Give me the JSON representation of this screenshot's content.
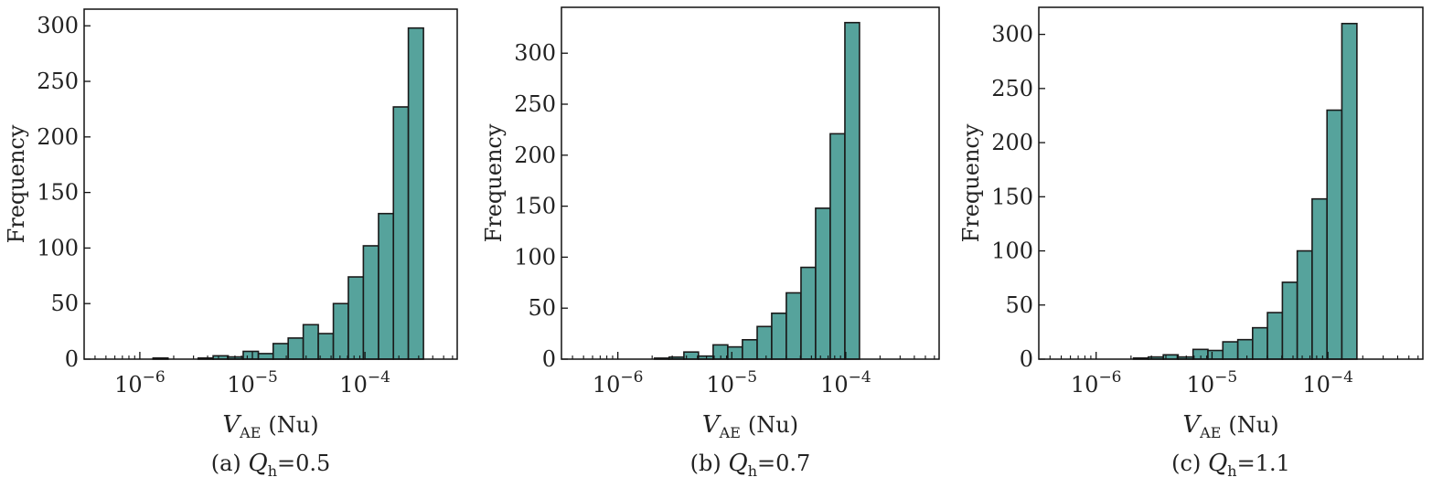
{
  "bar_color": "#56a39c",
  "edge_color": "#1a1a1a",
  "chart_data": [
    {
      "type": "bar",
      "xscale": "log",
      "xlim": [
        3.2e-07,
        0.00066
      ],
      "ylim": [
        0,
        315
      ],
      "yticks": [
        0,
        50,
        100,
        150,
        200,
        250,
        300
      ],
      "xticks": [
        {
          "value": 1e-06,
          "base": "10",
          "exp": "−6"
        },
        {
          "value": 1e-05,
          "base": "10",
          "exp": "−5"
        },
        {
          "value": 0.0001,
          "base": "10",
          "exp": "−4"
        }
      ],
      "ylabel": "Frequency",
      "xlabel": {
        "main": "V",
        "sub": "AE",
        "unit": "(Nu)"
      },
      "caption": {
        "prefix": "(a)",
        "var": "Q",
        "sub": "h",
        "eq": "=",
        "value": "0.5"
      },
      "bin_edges": [
        7.1e-07,
        9.66e-07,
        1.31e-06,
        1.78e-06,
        2.42e-06,
        3.3e-06,
        4.48e-06,
        6.1e-06,
        8.29e-06,
        1.13e-05,
        1.53e-05,
        2.08e-05,
        2.83e-05,
        3.85e-05,
        5.24e-05,
        7.12e-05,
        9.68e-05,
        0.000132,
        0.000179,
        0.000243,
        0.000331,
        0.00045,
        0.000612
      ],
      "values": [
        0,
        0,
        1,
        0,
        0,
        1,
        3,
        2,
        7,
        5,
        14,
        19,
        31,
        23,
        50,
        74,
        102,
        131,
        227,
        298,
        0,
        0
      ]
    },
    {
      "type": "bar",
      "xscale": "log",
      "xlim": [
        3.2e-07,
        0.00066
      ],
      "ylim": [
        0,
        345
      ],
      "yticks": [
        0,
        50,
        100,
        150,
        200,
        250,
        300
      ],
      "xticks": [
        {
          "value": 1e-06,
          "base": "10",
          "exp": "−6"
        },
        {
          "value": 1e-05,
          "base": "10",
          "exp": "−5"
        },
        {
          "value": 0.0001,
          "base": "10",
          "exp": "−4"
        }
      ],
      "ylabel": "Frequency",
      "xlabel": {
        "main": "V",
        "sub": "AE",
        "unit": "(Nu)"
      },
      "caption": {
        "prefix": "(b)",
        "var": "Q",
        "sub": "h",
        "eq": "=",
        "value": "0.7"
      },
      "bin_edges": [
        2.1e-06,
        2.82e-06,
        3.8e-06,
        5.1e-06,
        6.86e-06,
        9.22e-06,
        1.24e-05,
        1.67e-05,
        2.24e-05,
        3.01e-05,
        4.05e-05,
        5.44e-05,
        7.31e-05,
        9.83e-05,
        0.000132,
        0.000178,
        0.000239,
        0.000321,
        0.000432,
        0.00058
      ],
      "values": [
        1,
        2,
        7,
        3,
        14,
        12,
        19,
        32,
        45,
        65,
        90,
        148,
        221,
        330,
        0,
        0,
        0,
        0,
        0
      ]
    },
    {
      "type": "bar",
      "xscale": "log",
      "xlim": [
        3.2e-07,
        0.00066
      ],
      "ylim": [
        0,
        325
      ],
      "yticks": [
        0,
        50,
        100,
        150,
        200,
        250,
        300
      ],
      "xticks": [
        {
          "value": 1e-06,
          "base": "10",
          "exp": "−6"
        },
        {
          "value": 1e-05,
          "base": "10",
          "exp": "−5"
        },
        {
          "value": 0.0001,
          "base": "10",
          "exp": "−4"
        }
      ],
      "ylabel": "Frequency",
      "xlabel": {
        "main": "V",
        "sub": "AE",
        "unit": "(Nu)"
      },
      "caption": {
        "prefix": "(c)",
        "var": "Q",
        "sub": "h",
        "eq": "=",
        "value": "1.1"
      },
      "bin_edges": [
        2.1e-06,
        2.82e-06,
        3.8e-06,
        5.1e-06,
        6.86e-06,
        9.22e-06,
        1.24e-05,
        1.67e-05,
        2.24e-05,
        3.01e-05,
        4.05e-05,
        5.44e-05,
        7.31e-05,
        9.83e-05,
        0.000132,
        0.000178,
        0.000239,
        0.000321,
        0.000432,
        0.00058
      ],
      "values": [
        1,
        2,
        4,
        2,
        9,
        8,
        16,
        18,
        29,
        43,
        71,
        100,
        148,
        230,
        310,
        0,
        0,
        0,
        0
      ]
    }
  ]
}
